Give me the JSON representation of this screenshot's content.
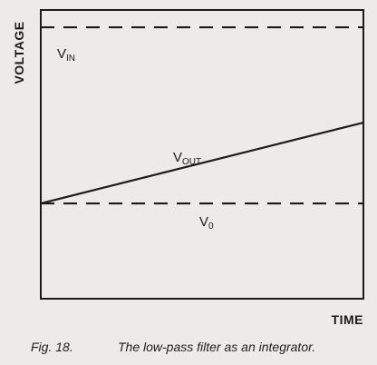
{
  "chart_data": {
    "type": "line",
    "xlabel": "TIME",
    "ylabel": "VOLTAGE",
    "series": [
      {
        "name": "VIN",
        "label_main": "V",
        "label_sub": "IN",
        "style": "dashed",
        "x": [
          0,
          1
        ],
        "y": [
          0.94,
          0.94
        ]
      },
      {
        "name": "VOUT",
        "label_main": "V",
        "label_sub": "OUT",
        "style": "solid",
        "x": [
          0,
          1
        ],
        "y": [
          0.33,
          0.61
        ]
      },
      {
        "name": "V0",
        "label_main": "V",
        "label_sub": "0",
        "style": "dashed",
        "x": [
          0,
          1
        ],
        "y": [
          0.33,
          0.33
        ]
      }
    ],
    "xlim": [
      0,
      1
    ],
    "ylim": [
      0,
      1
    ],
    "grid": false,
    "tick_labels": false
  },
  "caption": {
    "number": "Fig. 18.",
    "text": "The low-pass filter as an integrator."
  },
  "colors": {
    "ink": "#1b1b1b",
    "paper": "#ecebe8"
  }
}
